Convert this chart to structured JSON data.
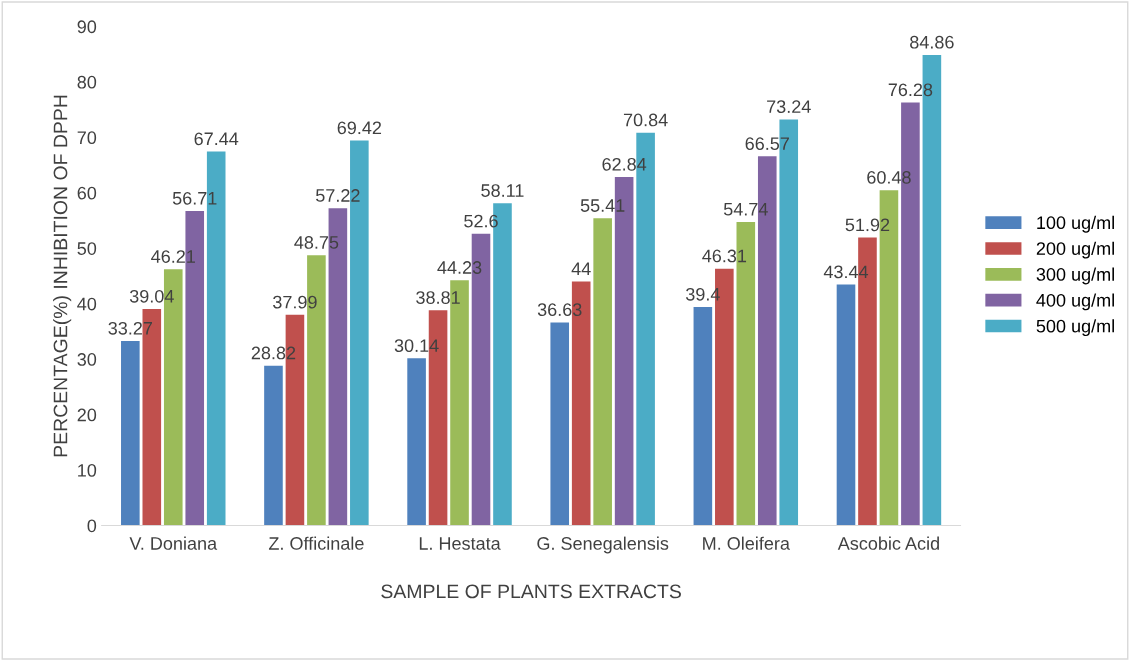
{
  "chart_data": {
    "type": "bar",
    "xlabel": "SAMPLE OF PLANTS EXTRACTS",
    "ylabel": "PERCENTAGE(%) INHIBITION OF DPPH",
    "categories": [
      "V. Doniana",
      "Z. Officinale",
      "L. Hestata",
      "G. Senegalensis",
      "M. Oleifera",
      "Ascobic Acid"
    ],
    "series": [
      {
        "name": "100 ug/ml",
        "color": "#4f81bd",
        "values": [
          33.27,
          28.82,
          30.14,
          36.63,
          39.4,
          43.44
        ]
      },
      {
        "name": "200 ug/ml",
        "color": "#c0504d",
        "values": [
          39.04,
          37.99,
          38.81,
          44,
          46.31,
          51.92
        ]
      },
      {
        "name": "300 ug/ml",
        "color": "#9bbb59",
        "values": [
          46.21,
          48.75,
          44.23,
          55.41,
          54.74,
          60.48
        ]
      },
      {
        "name": "400 ug/ml",
        "color": "#8064a2",
        "values": [
          56.71,
          57.22,
          52.6,
          62.84,
          66.57,
          76.28
        ]
      },
      {
        "name": "500 ug/ml",
        "color": "#4bacc6",
        "values": [
          67.44,
          69.42,
          58.11,
          70.84,
          73.24,
          84.86
        ]
      }
    ],
    "ylim": [
      0,
      90
    ],
    "yticks": [
      0,
      10,
      20,
      30,
      40,
      50,
      60,
      70,
      80,
      90
    ],
    "grid": false,
    "legend": "right",
    "data_labels": true
  }
}
